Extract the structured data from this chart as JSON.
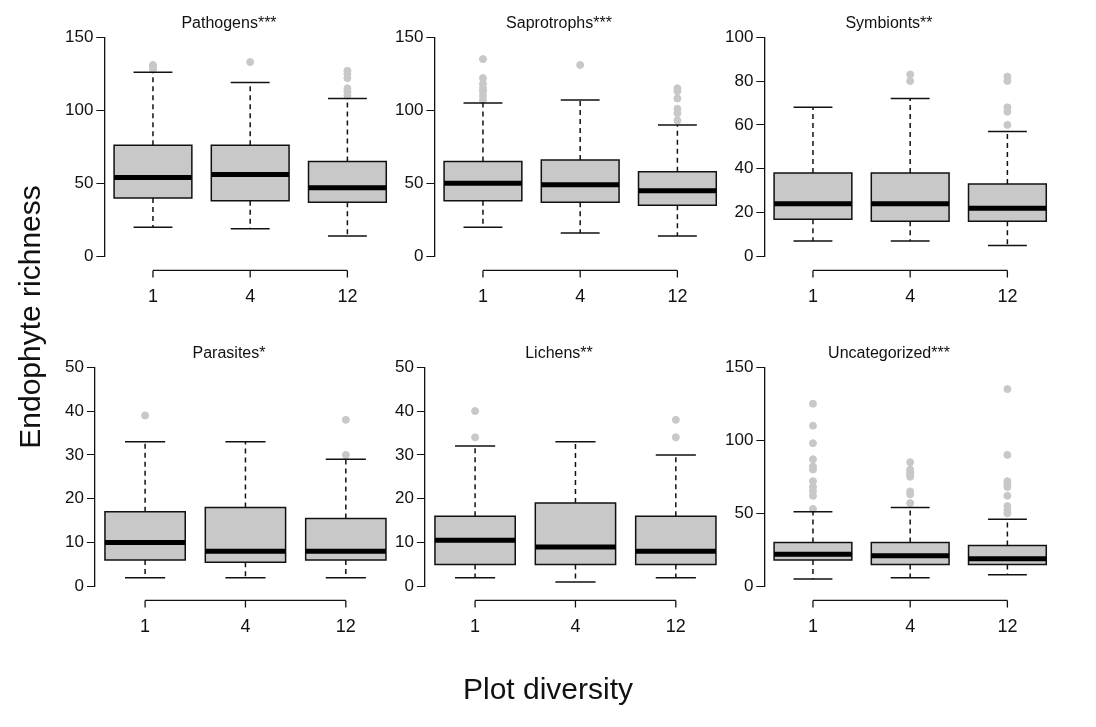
{
  "chart_data": [
    {
      "type": "box",
      "title": "Pathogens***",
      "ylabel": "Endophyte richness",
      "categories": [
        "1",
        "4",
        "12"
      ],
      "ylim": [
        0,
        150
      ],
      "yticks": [
        0,
        50,
        100,
        150
      ],
      "series": [
        {
          "color": "#c8c8c8",
          "boxes": [
            {
              "low": 20,
              "q1": 40,
              "median": 54,
              "q3": 76,
              "high": 126,
              "outliers": [
                128,
                130,
                131
              ]
            },
            {
              "low": 19,
              "q1": 38,
              "median": 56,
              "q3": 76,
              "high": 119,
              "outliers": [
                133
              ]
            },
            {
              "low": 14,
              "q1": 37,
              "median": 47,
              "q3": 65,
              "high": 108,
              "outliers": [
                110,
                113,
                115,
                122,
                125,
                127
              ]
            }
          ]
        }
      ]
    },
    {
      "type": "box",
      "title": "Saprotrophs***",
      "categories": [
        "1",
        "4",
        "12"
      ],
      "ylim": [
        0,
        150
      ],
      "yticks": [
        0,
        50,
        100,
        150
      ],
      "series": [
        {
          "color": "#c8c8c8",
          "boxes": [
            {
              "low": 20,
              "q1": 38,
              "median": 50,
              "q3": 65,
              "high": 105,
              "outliers": [
                107,
                110,
                113,
                115,
                118,
                122,
                135
              ]
            },
            {
              "low": 16,
              "q1": 37,
              "median": 49,
              "q3": 66,
              "high": 107,
              "outliers": [
                131
              ]
            },
            {
              "low": 14,
              "q1": 35,
              "median": 45,
              "q3": 58,
              "high": 90,
              "outliers": [
                93,
                98,
                101,
                108,
                113,
                115
              ]
            }
          ]
        }
      ]
    },
    {
      "type": "box",
      "title": "Symbionts**",
      "categories": [
        "1",
        "4",
        "12"
      ],
      "ylim": [
        0,
        100
      ],
      "yticks": [
        0,
        20,
        40,
        60,
        80,
        100
      ],
      "series": [
        {
          "color": "#c8c8c8",
          "boxes": [
            {
              "low": 7,
              "q1": 17,
              "median": 24,
              "q3": 38,
              "high": 68
            },
            {
              "low": 7,
              "q1": 16,
              "median": 24,
              "q3": 38,
              "high": 72,
              "outliers": [
                80,
                83
              ]
            },
            {
              "low": 5,
              "q1": 16,
              "median": 22,
              "q3": 33,
              "high": 57,
              "outliers": [
                60,
                66,
                68,
                80,
                82
              ]
            }
          ]
        }
      ]
    },
    {
      "type": "box",
      "title": "Parasites*",
      "categories": [
        "1",
        "4",
        "12"
      ],
      "ylim": [
        0,
        50
      ],
      "yticks": [
        0,
        10,
        20,
        30,
        40,
        50
      ],
      "series": [
        {
          "color": "#c8c8c8",
          "boxes": [
            {
              "low": 2,
              "q1": 6,
              "median": 10,
              "q3": 17,
              "high": 33,
              "outliers": [
                39
              ]
            },
            {
              "low": 2,
              "q1": 5.5,
              "median": 8,
              "q3": 18,
              "high": 33
            },
            {
              "low": 2,
              "q1": 6,
              "median": 8,
              "q3": 15.5,
              "high": 29,
              "outliers": [
                30,
                38
              ]
            }
          ]
        }
      ]
    },
    {
      "type": "box",
      "title": "Lichens**",
      "xlabel": "Plot diversity",
      "categories": [
        "1",
        "4",
        "12"
      ],
      "ylim": [
        0,
        50
      ],
      "yticks": [
        0,
        10,
        20,
        30,
        40,
        50
      ],
      "series": [
        {
          "color": "#c8c8c8",
          "boxes": [
            {
              "low": 2,
              "q1": 5,
              "median": 10.5,
              "q3": 16,
              "high": 32,
              "outliers": [
                34,
                40
              ]
            },
            {
              "low": 1,
              "q1": 5,
              "median": 9,
              "q3": 19,
              "high": 33
            },
            {
              "low": 2,
              "q1": 5,
              "median": 8,
              "q3": 16,
              "high": 30,
              "outliers": [
                34,
                38
              ]
            }
          ]
        }
      ]
    },
    {
      "type": "box",
      "title": "Uncategorized***",
      "categories": [
        "1",
        "4",
        "12"
      ],
      "ylim": [
        0,
        150
      ],
      "yticks": [
        0,
        50,
        100,
        150
      ],
      "series": [
        {
          "color": "#c8c8c8",
          "boxes": [
            {
              "low": 5,
              "q1": 18,
              "median": 22,
              "q3": 30,
              "high": 51,
              "outliers": [
                53,
                62,
                65,
                68,
                72,
                80,
                82,
                87,
                98,
                110,
                125
              ]
            },
            {
              "low": 6,
              "q1": 15,
              "median": 21,
              "q3": 30,
              "high": 54,
              "outliers": [
                57,
                63,
                65,
                75,
                77,
                78,
                80,
                85
              ]
            },
            {
              "low": 8,
              "q1": 15,
              "median": 19,
              "q3": 28,
              "high": 46,
              "outliers": [
                50,
                52,
                55,
                62,
                68,
                70,
                72,
                90,
                135
              ]
            }
          ]
        }
      ]
    }
  ]
}
